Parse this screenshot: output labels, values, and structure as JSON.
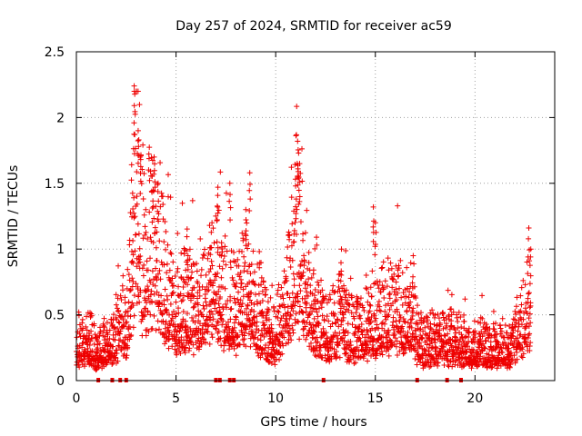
{
  "chart_data": {
    "type": "scatter",
    "title": "Day 257 of 2024, SRMTID for receiver ac59",
    "xlabel": "GPS time / hours",
    "ylabel": "SRMTID / TECUs",
    "xlim": [
      0,
      24
    ],
    "ylim": [
      0,
      2.5
    ],
    "xticks": [
      0,
      5,
      10,
      15,
      20
    ],
    "xtick_labels": [
      "0",
      "5",
      "10",
      "15",
      "20"
    ],
    "yticks": [
      0,
      0.5,
      1,
      1.5,
      2,
      2.5
    ],
    "ytick_labels": [
      "0",
      "0.5",
      "1",
      "1.5",
      "2",
      "2.5"
    ],
    "grid": true,
    "marker": "plus",
    "series_color": "#ee0000",
    "series": [
      {
        "name": "SRMTID",
        "profile": [
          {
            "x": 0.0,
            "y": 0.26
          },
          {
            "x": 0.5,
            "y": 0.32
          },
          {
            "x": 1.0,
            "y": 0.2
          },
          {
            "x": 1.5,
            "y": 0.28
          },
          {
            "x": 2.0,
            "y": 0.3
          },
          {
            "x": 2.5,
            "y": 0.45
          },
          {
            "x": 2.8,
            "y": 0.9
          },
          {
            "x": 3.0,
            "y": 1.4
          },
          {
            "x": 3.3,
            "y": 0.9
          },
          {
            "x": 3.8,
            "y": 1.0
          },
          {
            "x": 4.2,
            "y": 0.85
          },
          {
            "x": 4.6,
            "y": 0.6
          },
          {
            "x": 5.0,
            "y": 0.5
          },
          {
            "x": 5.6,
            "y": 0.55
          },
          {
            "x": 6.2,
            "y": 0.45
          },
          {
            "x": 7.0,
            "y": 0.75
          },
          {
            "x": 7.5,
            "y": 0.6
          },
          {
            "x": 8.0,
            "y": 0.5
          },
          {
            "x": 8.6,
            "y": 0.65
          },
          {
            "x": 9.2,
            "y": 0.5
          },
          {
            "x": 9.8,
            "y": 0.3
          },
          {
            "x": 10.4,
            "y": 0.45
          },
          {
            "x": 11.0,
            "y": 1.0
          },
          {
            "x": 11.4,
            "y": 0.7
          },
          {
            "x": 12.0,
            "y": 0.45
          },
          {
            "x": 12.6,
            "y": 0.35
          },
          {
            "x": 13.2,
            "y": 0.45
          },
          {
            "x": 13.8,
            "y": 0.35
          },
          {
            "x": 14.4,
            "y": 0.35
          },
          {
            "x": 15.0,
            "y": 0.45
          },
          {
            "x": 15.6,
            "y": 0.5
          },
          {
            "x": 16.2,
            "y": 0.5
          },
          {
            "x": 16.8,
            "y": 0.4
          },
          {
            "x": 17.4,
            "y": 0.25
          },
          {
            "x": 18.0,
            "y": 0.3
          },
          {
            "x": 18.6,
            "y": 0.3
          },
          {
            "x": 19.2,
            "y": 0.3
          },
          {
            "x": 19.8,
            "y": 0.22
          },
          {
            "x": 20.4,
            "y": 0.25
          },
          {
            "x": 21.0,
            "y": 0.25
          },
          {
            "x": 21.6,
            "y": 0.22
          },
          {
            "x": 22.2,
            "y": 0.35
          },
          {
            "x": 22.8,
            "y": 0.6
          }
        ],
        "peaks": [
          {
            "x": 2.9,
            "y": 2.24
          },
          {
            "x": 3.1,
            "y": 1.9
          },
          {
            "x": 3.2,
            "y": 1.7
          },
          {
            "x": 3.9,
            "y": 1.7
          },
          {
            "x": 4.1,
            "y": 1.5
          },
          {
            "x": 7.1,
            "y": 1.47
          },
          {
            "x": 7.7,
            "y": 1.5
          },
          {
            "x": 8.7,
            "y": 1.58
          },
          {
            "x": 8.5,
            "y": 1.3
          },
          {
            "x": 11.1,
            "y": 1.82
          },
          {
            "x": 11.15,
            "y": 1.73
          },
          {
            "x": 11.2,
            "y": 1.65
          },
          {
            "x": 11.0,
            "y": 1.48
          },
          {
            "x": 14.9,
            "y": 1.32
          },
          {
            "x": 15.0,
            "y": 1.2
          },
          {
            "x": 13.3,
            "y": 1.0
          },
          {
            "x": 16.9,
            "y": 0.95
          },
          {
            "x": 22.7,
            "y": 1.16
          },
          {
            "x": 22.8,
            "y": 1.0
          },
          {
            "x": 5.6,
            "y": 0.95
          }
        ],
        "zero_points_x": [
          1.1,
          1.8,
          2.2,
          2.5,
          7.0,
          7.2,
          7.7,
          7.9,
          12.4,
          17.1,
          18.6,
          19.3
        ]
      }
    ]
  }
}
